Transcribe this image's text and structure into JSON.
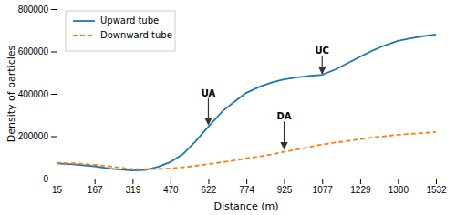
{
  "chart_data": {
    "type": "line",
    "xlabel": "Distance (m)",
    "ylabel": "Density of particles",
    "x": [
      15,
      80,
      167,
      230,
      280,
      319,
      370,
      420,
      470,
      520,
      570,
      622,
      680,
      740,
      774,
      830,
      880,
      925,
      980,
      1030,
      1077,
      1130,
      1180,
      1229,
      1280,
      1330,
      1380,
      1430,
      1480,
      1532
    ],
    "series": [
      {
        "name": "Upward tube",
        "line_style": "solid",
        "values": [
          72000,
          67000,
          58000,
          47000,
          41000,
          38000,
          40000,
          55000,
          78000,
          115000,
          175000,
          245000,
          320000,
          375000,
          405000,
          435000,
          455000,
          468000,
          478000,
          485000,
          490000,
          515000,
          545000,
          575000,
          605000,
          630000,
          650000,
          662000,
          672000,
          680000
        ]
      },
      {
        "name": "Downward tube",
        "line_style": "dashed",
        "values": [
          75000,
          72000,
          65000,
          57000,
          50000,
          45000,
          44000,
          45000,
          48000,
          53000,
          60000,
          68000,
          78000,
          88000,
          96000,
          105000,
          115000,
          126000,
          138000,
          150000,
          161000,
          170000,
          178000,
          186000,
          194000,
          200000,
          207000,
          211000,
          215000,
          220000
        ]
      }
    ],
    "xlim": [
      15,
      1532
    ],
    "xticks": [
      15,
      167,
      319,
      470,
      622,
      774,
      925,
      1077,
      1229,
      1380,
      1532
    ],
    "ylim": [
      0,
      800000
    ],
    "yticks": [
      0,
      200000,
      400000,
      600000,
      800000
    ],
    "annotations": [
      {
        "text": "UA",
        "x": 622,
        "y": 255000,
        "text_y": 380000
      },
      {
        "text": "UC",
        "x": 1077,
        "y": 495000,
        "text_y": 580000
      },
      {
        "text": "DA",
        "x": 925,
        "y": 140000,
        "text_y": 270000
      }
    ],
    "legend": "upper left",
    "grid": false
  }
}
